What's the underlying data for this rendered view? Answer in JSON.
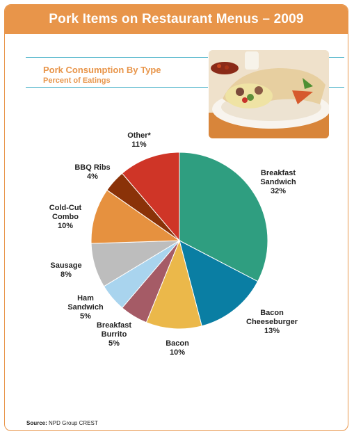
{
  "header": {
    "title": "Pork Items on Restaurant Menus – 2009"
  },
  "subtitle": {
    "line1": "Pork Consumption By Type",
    "line2": "Percent of Eatings"
  },
  "source": {
    "label": "Source:",
    "text": "NPD Group CREST"
  },
  "colors": {
    "accent": "#e8954a",
    "rule": "#4bb3c9"
  },
  "chart_data": {
    "type": "pie",
    "unit": "%",
    "slices": [
      {
        "label": "Breakfast Sandwich",
        "value": 32,
        "text_lines": [
          "Breakfast",
          "Sandwich",
          "32%"
        ],
        "color": "#2f9e80"
      },
      {
        "label": "Bacon Cheeseburger",
        "value": 13,
        "text_lines": [
          "Bacon",
          "Cheeseburger",
          "13%"
        ],
        "color": "#0a7ea3"
      },
      {
        "label": "Bacon",
        "value": 10,
        "text_lines": [
          "Bacon",
          "10%"
        ],
        "color": "#ebb84a"
      },
      {
        "label": "Breakfast Burrito",
        "value": 5,
        "text_lines": [
          "Breakfast",
          "Burrito",
          "5%"
        ],
        "color": "#a55b66"
      },
      {
        "label": "Ham Sandwich",
        "value": 5,
        "text_lines": [
          "Ham",
          "Sandwich",
          "5%"
        ],
        "color": "#a9d4ee"
      },
      {
        "label": "Sausage",
        "value": 8,
        "text_lines": [
          "Sausage",
          "8%"
        ],
        "color": "#bdbdbd"
      },
      {
        "label": "Cold-Cut Combo",
        "value": 10,
        "text_lines": [
          "Cold-Cut",
          "Combo",
          "10%"
        ],
        "color": "#e6913f"
      },
      {
        "label": "BBQ Ribs",
        "value": 4,
        "text_lines": [
          "BBQ Ribs",
          "4%"
        ],
        "color": "#8a3208"
      },
      {
        "label": "Other*",
        "value": 11,
        "text_lines": [
          "Other*",
          "11%"
        ],
        "color": "#cf3527"
      }
    ]
  }
}
